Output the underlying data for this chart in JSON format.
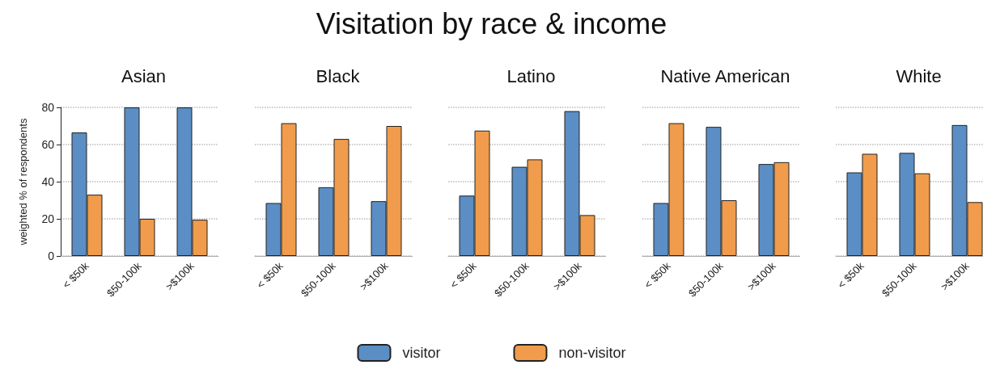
{
  "chart_data": [
    {
      "type": "bar",
      "title": "Asian",
      "annotations": [
        "Visitation by race & income"
      ],
      "ylabel": "weighted % of respondents",
      "categories": [
        "< $50k",
        "$50-100k",
        ">$100k"
      ],
      "series": [
        {
          "name": "visitor",
          "color": "#5b8ec4",
          "values": [
            66.5,
            80,
            80
          ]
        },
        {
          "name": "non-visitor",
          "color": "#f09c4c",
          "values": [
            33,
            20,
            19.5
          ]
        }
      ],
      "ylim": [
        0,
        80
      ],
      "yticks": [
        0,
        20,
        40,
        60,
        80
      ],
      "grid": "y",
      "legend": "bottom"
    },
    {
      "type": "bar",
      "title": "Black",
      "categories": [
        "< $50k",
        "$50-100k",
        ">$100k"
      ],
      "series": [
        {
          "color": "#5b8ec4",
          "values": [
            28.5,
            37,
            29.5
          ]
        },
        {
          "color": "#f09c4c",
          "values": [
            71.5,
            63,
            70
          ]
        }
      ],
      "ylim": [
        0,
        80
      ],
      "yticks": [
        0,
        20,
        40,
        60,
        80
      ],
      "grid": "y",
      "tick_labels": "x"
    },
    {
      "type": "bar",
      "title": "Latino",
      "categories": [
        "< $50k",
        "$50-100k",
        ">$100k"
      ],
      "series": [
        {
          "color": "#5b8ec4",
          "values": [
            32.5,
            48,
            78
          ]
        },
        {
          "color": "#f09c4c",
          "values": [
            67.5,
            52,
            22
          ]
        }
      ],
      "ylim": [
        0,
        80
      ],
      "yticks": [
        0,
        20,
        40,
        60,
        80
      ],
      "grid": "y",
      "tick_labels": "x"
    },
    {
      "type": "bar",
      "title": "Native American",
      "categories": [
        "< $50k",
        "$50-100k",
        ">$100k"
      ],
      "series": [
        {
          "color": "#5b8ec4",
          "values": [
            28.5,
            69.5,
            49.5
          ]
        },
        {
          "color": "#f09c4c",
          "values": [
            71.5,
            30,
            50.5
          ]
        }
      ],
      "ylim": [
        0,
        80
      ],
      "yticks": [
        0,
        20,
        40,
        60,
        80
      ],
      "grid": "y",
      "tick_labels": "x"
    },
    {
      "type": "bar",
      "title": "White",
      "categories": [
        "< $50k",
        "$50-100k",
        ">$100k"
      ],
      "series": [
        {
          "color": "#5b8ec4",
          "values": [
            45,
            55.5,
            70.5
          ]
        },
        {
          "color": "#f09c4c",
          "values": [
            55,
            44.5,
            29
          ]
        }
      ],
      "ylim": [
        0,
        80
      ],
      "yticks": [
        0,
        20,
        40,
        60,
        80
      ],
      "grid": "y",
      "tick_labels": "x"
    }
  ]
}
